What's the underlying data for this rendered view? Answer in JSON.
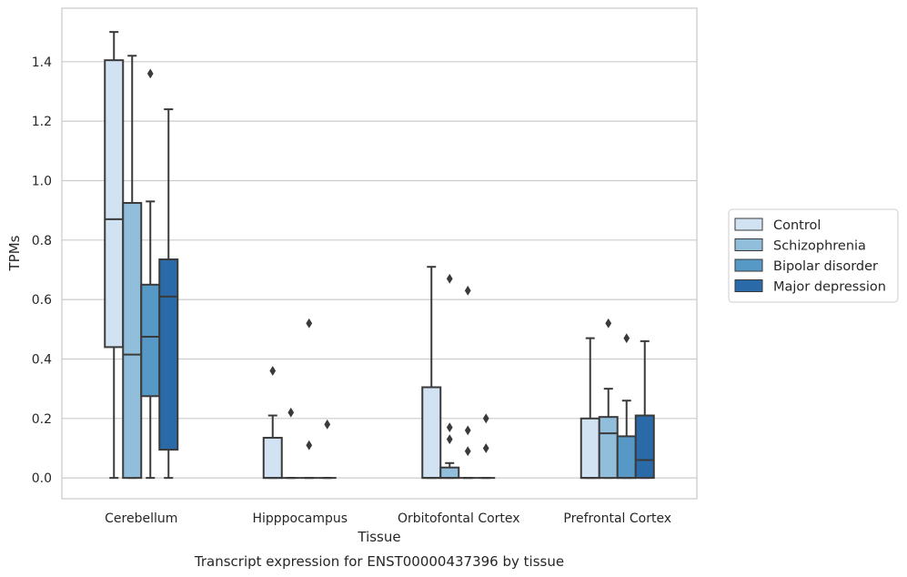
{
  "chart_data": {
    "type": "box",
    "title": "",
    "caption": "Transcript expression for ENST00000437396 by tissue",
    "xlabel": "Tissue",
    "ylabel": "TPMs",
    "ylim": [
      -0.07,
      1.58
    ],
    "yticks": [
      0.0,
      0.2,
      0.4,
      0.6,
      0.8,
      1.0,
      1.2,
      1.4
    ],
    "ytick_labels": [
      "0.0",
      "0.2",
      "0.4",
      "0.6",
      "0.8",
      "1.0",
      "1.2",
      "1.4"
    ],
    "grid": "horizontal",
    "legend_position": "right",
    "categories": [
      "Cerebellum",
      "Hipppocampus",
      "Orbitofontal Cortex",
      "Prefrontal Cortex"
    ],
    "series": [
      {
        "name": "Control",
        "color": "#d1e2f2",
        "boxes": [
          {
            "whislo": 0.0,
            "q1": 0.44,
            "med": 0.87,
            "q3": 1.405,
            "whishi": 1.5,
            "fliers": []
          },
          {
            "whislo": 0.0,
            "q1": 0.0,
            "med": 0.0,
            "q3": 0.135,
            "whishi": 0.21,
            "fliers": [
              0.36
            ]
          },
          {
            "whislo": 0.0,
            "q1": 0.0,
            "med": 0.0,
            "q3": 0.305,
            "whishi": 0.71,
            "fliers": []
          },
          {
            "whislo": 0.0,
            "q1": 0.0,
            "med": 0.0,
            "q3": 0.2,
            "whishi": 0.47,
            "fliers": []
          }
        ]
      },
      {
        "name": "Schizophrenia",
        "color": "#91bfdb",
        "boxes": [
          {
            "whislo": 0.0,
            "q1": 0.0,
            "med": 0.415,
            "q3": 0.925,
            "whishi": 1.42,
            "fliers": []
          },
          {
            "whislo": 0.0,
            "q1": 0.0,
            "med": 0.0,
            "q3": 0.0,
            "whishi": 0.0,
            "fliers": [
              0.22
            ]
          },
          {
            "whislo": 0.0,
            "q1": 0.0,
            "med": 0.0,
            "q3": 0.035,
            "whishi": 0.05,
            "fliers": [
              0.17,
              0.13,
              0.67
            ]
          },
          {
            "whislo": 0.0,
            "q1": 0.0,
            "med": 0.15,
            "q3": 0.205,
            "whishi": 0.3,
            "fliers": [
              0.52
            ]
          }
        ]
      },
      {
        "name": "Bipolar disorder",
        "color": "#5699c6",
        "boxes": [
          {
            "whislo": 0.0,
            "q1": 0.275,
            "med": 0.475,
            "q3": 0.65,
            "whishi": 0.93,
            "fliers": [
              1.36
            ]
          },
          {
            "whislo": 0.0,
            "q1": 0.0,
            "med": 0.0,
            "q3": 0.0,
            "whishi": 0.0,
            "fliers": [
              0.52,
              0.11
            ]
          },
          {
            "whislo": 0.0,
            "q1": 0.0,
            "med": 0.0,
            "q3": 0.0,
            "whishi": 0.0,
            "fliers": [
              0.16,
              0.09,
              0.63
            ]
          },
          {
            "whislo": 0.0,
            "q1": 0.0,
            "med": 0.0,
            "q3": 0.14,
            "whishi": 0.26,
            "fliers": [
              0.47
            ]
          }
        ]
      },
      {
        "name": "Major depression",
        "color": "#2a6aa9",
        "boxes": [
          {
            "whislo": 0.0,
            "q1": 0.095,
            "med": 0.61,
            "q3": 0.735,
            "whishi": 1.24,
            "fliers": []
          },
          {
            "whislo": 0.0,
            "q1": 0.0,
            "med": 0.0,
            "q3": 0.0,
            "whishi": 0.0,
            "fliers": [
              0.18
            ]
          },
          {
            "whislo": 0.0,
            "q1": 0.0,
            "med": 0.0,
            "q3": 0.0,
            "whishi": 0.0,
            "fliers": [
              0.2,
              0.1
            ]
          },
          {
            "whislo": 0.0,
            "q1": 0.0,
            "med": 0.06,
            "q3": 0.21,
            "whishi": 0.46,
            "fliers": []
          }
        ]
      }
    ]
  }
}
